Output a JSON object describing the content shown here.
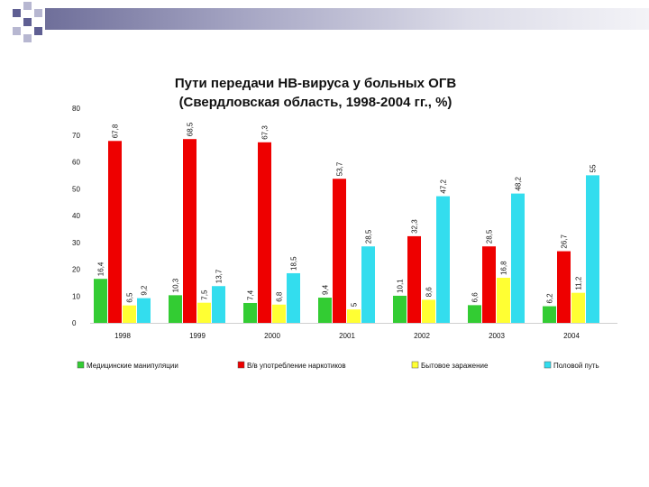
{
  "chart_data": {
    "type": "bar",
    "title": "Пути передачи НВ-вируса у больных ОГВ",
    "subtitle": "(Свердловская область, 1998-2004 гг., %)",
    "categories": [
      "1998",
      "1999",
      "2000",
      "2001",
      "2002",
      "2003",
      "2004"
    ],
    "series": [
      {
        "name": "Медицинские манипуляции",
        "color": "#33cc33",
        "values": [
          16.4,
          10.3,
          7.4,
          9.4,
          10.1,
          6.6,
          6.2
        ],
        "labels": [
          "16,4",
          "10,3",
          "7,4",
          "9,4",
          "10,1",
          "6,6",
          "6,2"
        ]
      },
      {
        "name": "В/в употребление наркотиков",
        "color": "#ee0000",
        "values": [
          67.8,
          68.5,
          67.3,
          53.7,
          32.3,
          28.5,
          26.7
        ],
        "labels": [
          "67,8",
          "68,5",
          "67,3",
          "53,7",
          "32,3",
          "28,5",
          "26,7"
        ]
      },
      {
        "name": "Бытовое заражение",
        "color": "#ffff33",
        "values": [
          6.5,
          7.5,
          6.8,
          5.0,
          8.6,
          16.8,
          11.2
        ],
        "labels": [
          "6,5",
          "7,5",
          "6,8",
          "5",
          "8,6",
          "16,8",
          "11,2"
        ]
      },
      {
        "name": "Половой путь",
        "color": "#33ddee",
        "values": [
          9.2,
          13.7,
          18.5,
          28.5,
          47.2,
          48.2,
          55.0
        ],
        "labels": [
          "9,2",
          "13,7",
          "18,5",
          "28,5",
          "47,2",
          "48,2",
          "55"
        ]
      }
    ],
    "yticks": [
      "80",
      "70",
      "60",
      "50",
      "40",
      "30",
      "20",
      "10",
      "0"
    ],
    "ylim": [
      0,
      80
    ],
    "xlabel": "",
    "ylabel": "",
    "legend": "bottom",
    "grid": false
  }
}
